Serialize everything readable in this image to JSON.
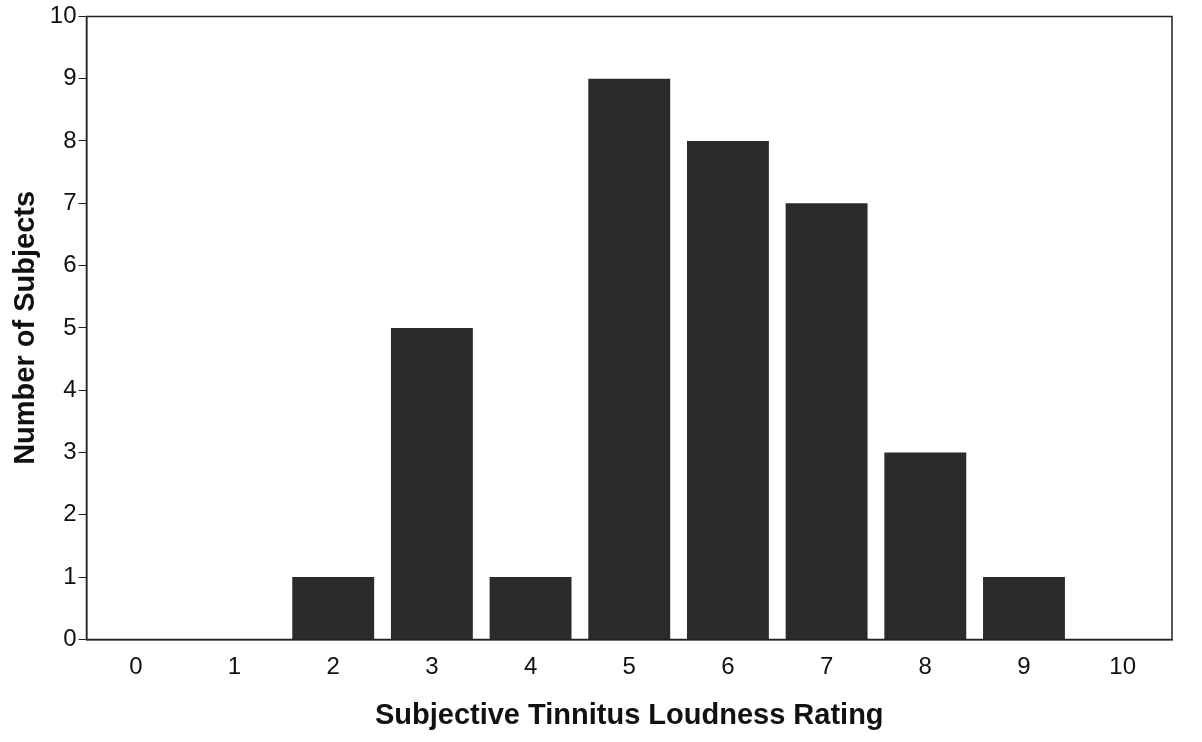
{
  "chart_data": {
    "type": "bar",
    "xlabel": "Subjective Tinnitus Loudness Rating",
    "ylabel": "Number of Subjects",
    "categories": [
      "0",
      "1",
      "2",
      "3",
      "4",
      "5",
      "6",
      "7",
      "8",
      "9",
      "10"
    ],
    "values": [
      0,
      0,
      1,
      5,
      1,
      9,
      8,
      7,
      3,
      1,
      0
    ],
    "color": "#2b2b2b",
    "ylim": [
      0,
      10
    ],
    "yticks": [
      0,
      1,
      2,
      3,
      4,
      5,
      6,
      7,
      8,
      9,
      10
    ],
    "grid": false,
    "legend": false
  }
}
